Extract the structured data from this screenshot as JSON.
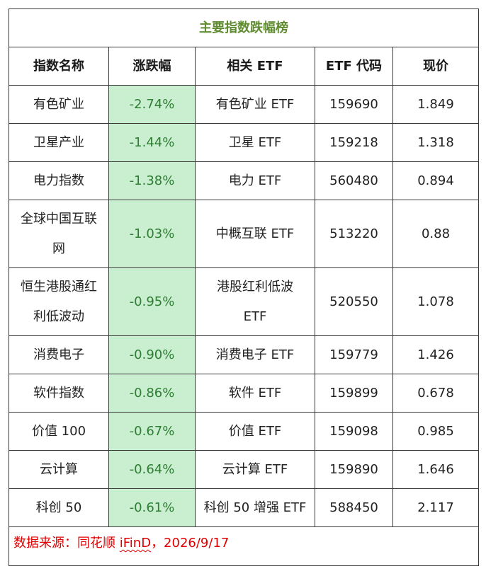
{
  "title": "主要指数跌幅榜",
  "headers": [
    "指数名称",
    "涨跌幅",
    "相关 ETF",
    "ETF 代码",
    "现价"
  ],
  "rows": [
    {
      "index_name": "有色矿业",
      "change": "-2.74%",
      "etf": "有色矿业 ETF",
      "code": "159690",
      "price": "1.849"
    },
    {
      "index_name": "卫星产业",
      "change": "-1.44%",
      "etf": "卫星 ETF",
      "code": "159218",
      "price": "1.318"
    },
    {
      "index_name": "电力指数",
      "change": "-1.38%",
      "etf": "电力 ETF",
      "code": "560480",
      "price": "0.894"
    },
    {
      "index_name": "全球中国互联网",
      "change": "-1.03%",
      "etf": "中概互联 ETF",
      "code": "513220",
      "price": "0.88"
    },
    {
      "index_name": "恒生港股通红利低波动",
      "change": "-0.95%",
      "etf": "港股红利低波 ETF",
      "code": "520550",
      "price": "1.078"
    },
    {
      "index_name": "消费电子",
      "change": "-0.90%",
      "etf": "消费电子 ETF",
      "code": "159779",
      "price": "1.426"
    },
    {
      "index_name": "软件指数",
      "change": "-0.86%",
      "etf": "软件 ETF",
      "code": "159899",
      "price": "0.678"
    },
    {
      "index_name": "价值 100",
      "change": "-0.67%",
      "etf": "价值 ETF",
      "code": "159098",
      "price": "0.985"
    },
    {
      "index_name": "云计算",
      "change": "-0.64%",
      "etf": "云计算 ETF",
      "code": "159890",
      "price": "1.646"
    },
    {
      "index_name": "科创 50",
      "change": "-0.61%",
      "etf": "科创 50 增强 ETF",
      "code": "588450",
      "price": "2.117"
    }
  ],
  "footer": {
    "prefix": "数据来源：同花顺 ",
    "brand": "iFinD",
    "suffix": "，2026/9/17"
  },
  "colors": {
    "title": "#5e8c2e",
    "change_bg": "#c9efd0",
    "change_text": "#2e7d32",
    "footer_text": "#e00000"
  }
}
